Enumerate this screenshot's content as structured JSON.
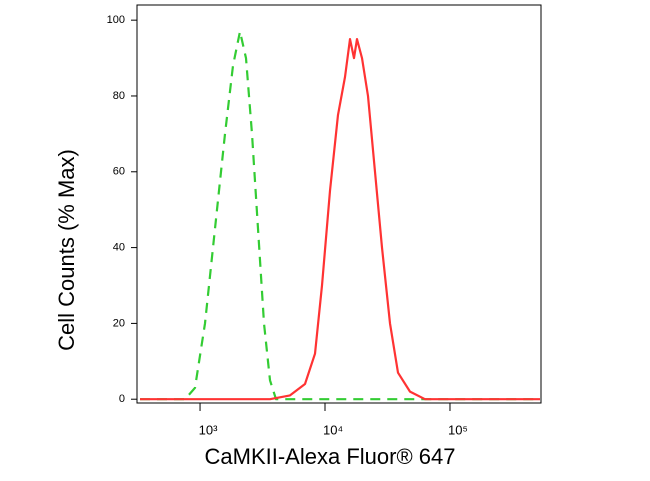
{
  "chart_data": {
    "type": "line",
    "x_label": "CaMKII-Alexa Fluor® 647",
    "y_label": "Cell Counts (% Max)",
    "xscale": "log",
    "xlim": [
      313,
      535000
    ],
    "xticks": [
      {
        "value": 1000,
        "label": "10³"
      },
      {
        "value": 10000,
        "label": "10⁴"
      },
      {
        "value": 100000,
        "label": "10⁵"
      }
    ],
    "ylim": [
      -1,
      104
    ],
    "yticks": [
      0,
      20,
      40,
      60,
      80,
      100
    ],
    "grid": false,
    "series": [
      {
        "color": "#33cc33",
        "dash": true,
        "x": [
          331,
          759,
          912,
          1096,
          1318,
          1585,
          1837,
          2089,
          2333,
          2606,
          2911,
          3251,
          3631,
          4055,
          524807
        ],
        "values": [
          0,
          0,
          3,
          20,
          45,
          70,
          88,
          97,
          90,
          70,
          45,
          20,
          5,
          0,
          0
        ]
      },
      {
        "color": "#ff3333",
        "dash": false,
        "x": [
          331,
          3631,
          5248,
          6918,
          8318,
          9462,
          10965,
          12706,
          14454,
          15849,
          17061,
          18030,
          19770,
          22080,
          25119,
          28576,
          33113,
          38371,
          47863,
          63096,
          524807
        ],
        "values": [
          0,
          0,
          1,
          4,
          12,
          30,
          55,
          75,
          85,
          95,
          90,
          95,
          90,
          80,
          60,
          40,
          20,
          7,
          2,
          0,
          0
        ]
      }
    ]
  }
}
